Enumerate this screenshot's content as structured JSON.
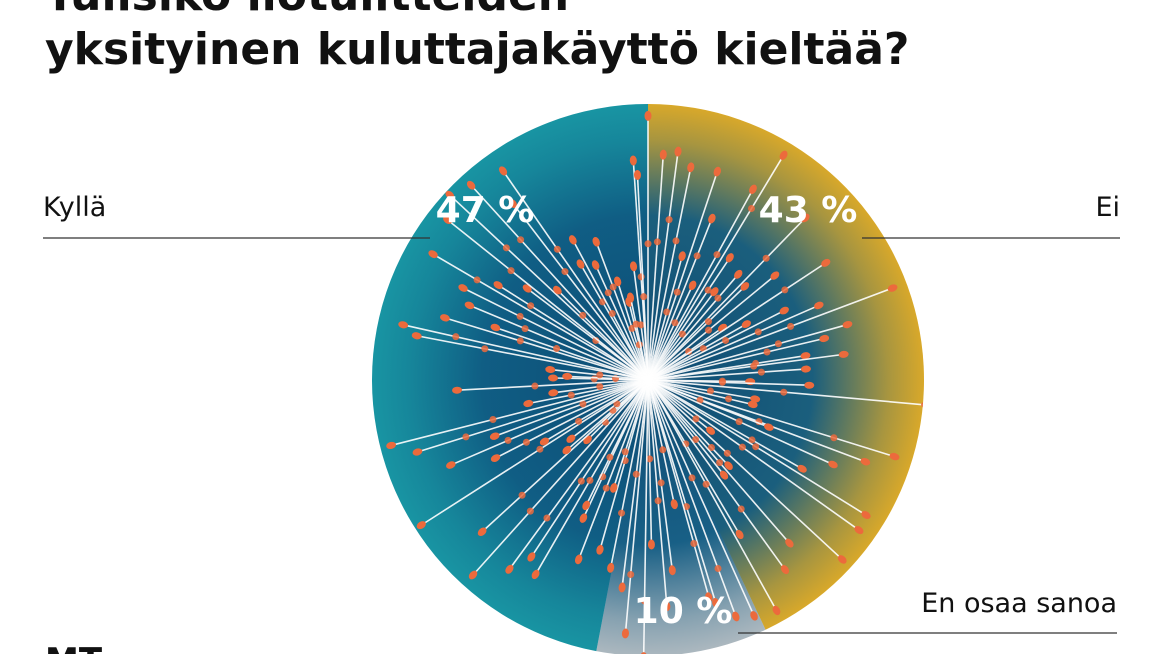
{
  "chart_data": {
    "type": "pie",
    "title": [
      "Tulisiko ilotulitteiden",
      "yksityinen kuluttajakäyttö kieltää?"
    ],
    "categories": [
      "Ei",
      "En osaa sanoa",
      "Kyllä"
    ],
    "values": [
      43,
      10,
      47
    ],
    "value_labels": [
      "43 %",
      "10 %",
      "47 %"
    ],
    "colors": [
      "#f9b51c",
      "#c5c7c9",
      "#1a9ea8"
    ],
    "source": "MT"
  }
}
